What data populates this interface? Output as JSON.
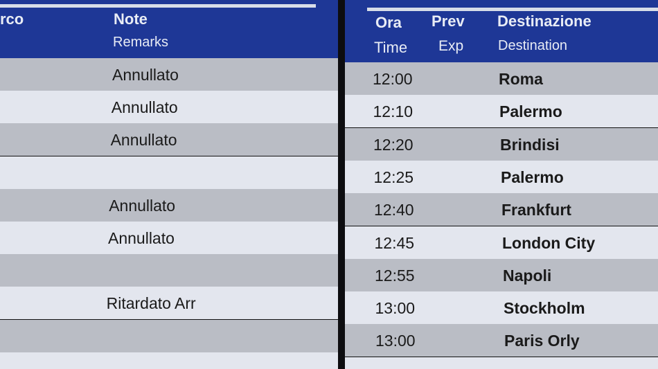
{
  "left_board": {
    "headers": {
      "partial": "rco",
      "note": "Note",
      "remarks": "Remarks"
    },
    "rows": [
      "Annullato",
      "Annullato",
      "Annullato",
      "",
      "Annullato",
      "Annullato",
      "",
      "Ritardato Arr",
      "",
      ""
    ]
  },
  "right_board": {
    "headers": {
      "ora": "Ora",
      "prev": "Prev",
      "destinazione": "Destinazione",
      "time": "Time",
      "exp": "Exp",
      "destination": "Destination"
    },
    "rows": [
      {
        "time": "12:00",
        "dest": "Roma"
      },
      {
        "time": "12:10",
        "dest": "Palermo"
      },
      {
        "time": "12:20",
        "dest": "Brindisi"
      },
      {
        "time": "12:25",
        "dest": "Palermo"
      },
      {
        "time": "12:40",
        "dest": "Frankfurt"
      },
      {
        "time": "12:45",
        "dest": "London City"
      },
      {
        "time": "12:55",
        "dest": "Napoli"
      },
      {
        "time": "13:00",
        "dest": "Stockholm"
      },
      {
        "time": "13:00",
        "dest": "Paris Orly"
      }
    ]
  },
  "colors": {
    "header": "#1e3796",
    "row_dark": "#babdc5",
    "row_light": "#e3e6ee"
  }
}
